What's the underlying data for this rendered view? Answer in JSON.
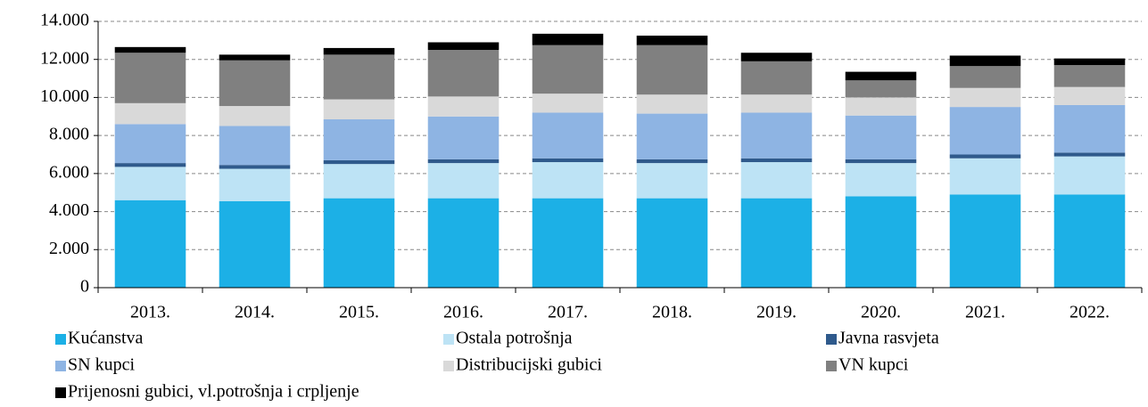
{
  "chart_data": {
    "type": "stacked_bar",
    "categories": [
      "2013.",
      "2014.",
      "2015.",
      "2016.",
      "2017.",
      "2018.",
      "2019.",
      "2020.",
      "2021.",
      "2022."
    ],
    "series": [
      {
        "name": "Kućanstva",
        "color": "#1cb0e6",
        "values": [
          4600,
          4550,
          4700,
          4700,
          4700,
          4700,
          4700,
          4800,
          4900,
          4900
        ]
      },
      {
        "name": "Ostala potrošnja",
        "color": "#bde3f5",
        "values": [
          1750,
          1700,
          1800,
          1850,
          1900,
          1850,
          1900,
          1750,
          1900,
          2000
        ]
      },
      {
        "name": "Javna rasvjeta",
        "color": "#2f5a8c",
        "values": [
          200,
          200,
          200,
          200,
          200,
          200,
          200,
          200,
          200,
          200
        ]
      },
      {
        "name": "SN kupci",
        "color": "#8eb4e3",
        "values": [
          2050,
          2050,
          2150,
          2250,
          2400,
          2400,
          2400,
          2300,
          2500,
          2500
        ]
      },
      {
        "name": "Distribucijski gubici",
        "color": "#d9d9d9",
        "values": [
          1100,
          1050,
          1050,
          1050,
          1000,
          1000,
          950,
          950,
          1000,
          950
        ]
      },
      {
        "name": "VN kupci",
        "color": "#808080",
        "values": [
          2650,
          2400,
          2350,
          2450,
          2550,
          2600,
          1750,
          900,
          1150,
          1150
        ]
      },
      {
        "name": "Prijenosni gubici, vl.potrošnja i crpljenje",
        "color": "#000000",
        "values": [
          300,
          300,
          350,
          400,
          600,
          500,
          450,
          450,
          550,
          350
        ]
      }
    ],
    "ylim": [
      0,
      14000
    ],
    "yticks": [
      0,
      {
        "value": 2000,
        "label": "2.000"
      },
      {
        "value": 4000,
        "label": "4.000"
      },
      {
        "value": 6000,
        "label": "6.000"
      },
      {
        "value": 8000,
        "label": "8.000"
      },
      {
        "value": 10000,
        "label": "10.000"
      },
      {
        "value": 12000,
        "label": "12.000"
      },
      {
        "value": 14000,
        "label": "14.000"
      }
    ],
    "grid": true
  }
}
